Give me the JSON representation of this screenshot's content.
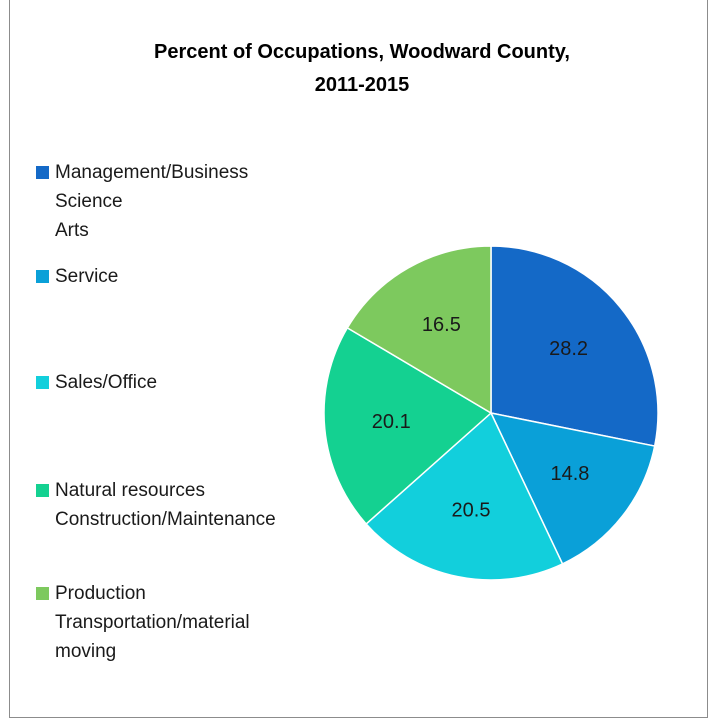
{
  "chart_data": {
    "type": "pie",
    "title": "Percent of Occupations, Woodward County,\n2011-2015",
    "categories": [
      "Management/Business\nScience\nArts",
      "Service",
      "Sales/Office",
      "Natural resources\nConstruction/Maintenance",
      "Production\nTransportation/material\nmoving"
    ],
    "values": [
      28.2,
      14.8,
      20.5,
      20.1,
      16.5
    ],
    "colors": [
      "#1469c7",
      "#0aa0d8",
      "#12cfdc",
      "#14d191",
      "#7dc95e"
    ],
    "legend": "left"
  }
}
